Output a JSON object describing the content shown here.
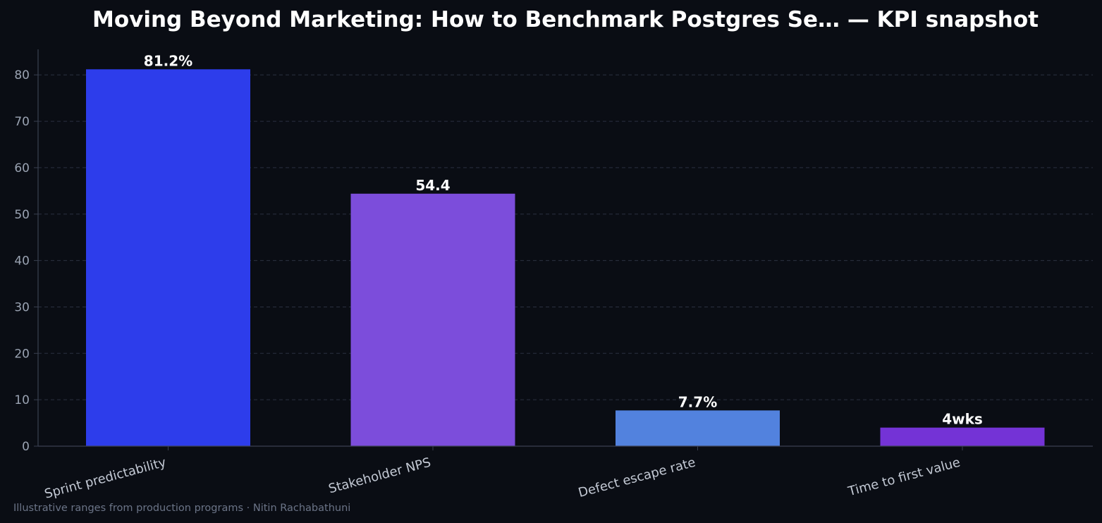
{
  "colors": {
    "background": "#0a0d14",
    "grid": "#2a3040",
    "axis": "#3a4050",
    "tick_text": "#9aa3b2",
    "category_text": "#c3c9d4",
    "label_text": "#ffffff"
  },
  "footer": "Illustrative ranges from production programs · Nitin Rachabathuni",
  "chart_data": {
    "type": "bar",
    "title": "Moving Beyond Marketing: How to Benchmark Postgres Se… — KPI snapshot",
    "xlabel": "",
    "ylabel": "",
    "categories": [
      "Sprint predictability",
      "Stakeholder NPS",
      "Defect escape rate",
      "Time to first value"
    ],
    "values": [
      81.2,
      54.4,
      7.7,
      4
    ],
    "data_labels": [
      "81.2%",
      "54.4",
      "7.7%",
      "4wks"
    ],
    "bar_colors": [
      "#2d3deb",
      "#7c4ddb",
      "#5282de",
      "#7433d6"
    ],
    "ylim": [
      0,
      85.5
    ],
    "yticks": [
      0,
      10,
      20,
      30,
      40,
      50,
      60,
      70,
      80
    ],
    "grid": true,
    "legend": "none"
  }
}
